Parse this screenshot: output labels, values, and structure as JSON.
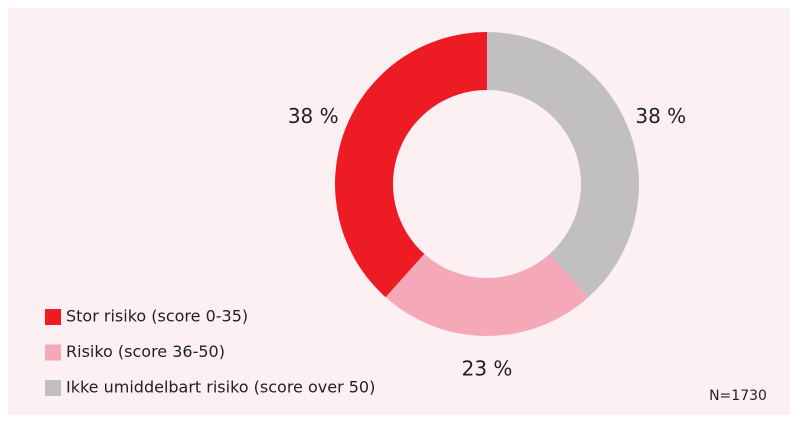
{
  "chart_data": {
    "type": "donut",
    "categories": [
      "Stor risiko (score 0-35)",
      "Risiko (score 36-50)",
      "Ikke umiddelbart risiko (score over 50)"
    ],
    "values": [
      38,
      23,
      38
    ],
    "value_labels": [
      "38 %",
      "23 %",
      "38 %"
    ],
    "colors": [
      "#ed1c24",
      "#f5a9b8",
      "#c1bfbf"
    ],
    "annotation": "N=1730"
  }
}
